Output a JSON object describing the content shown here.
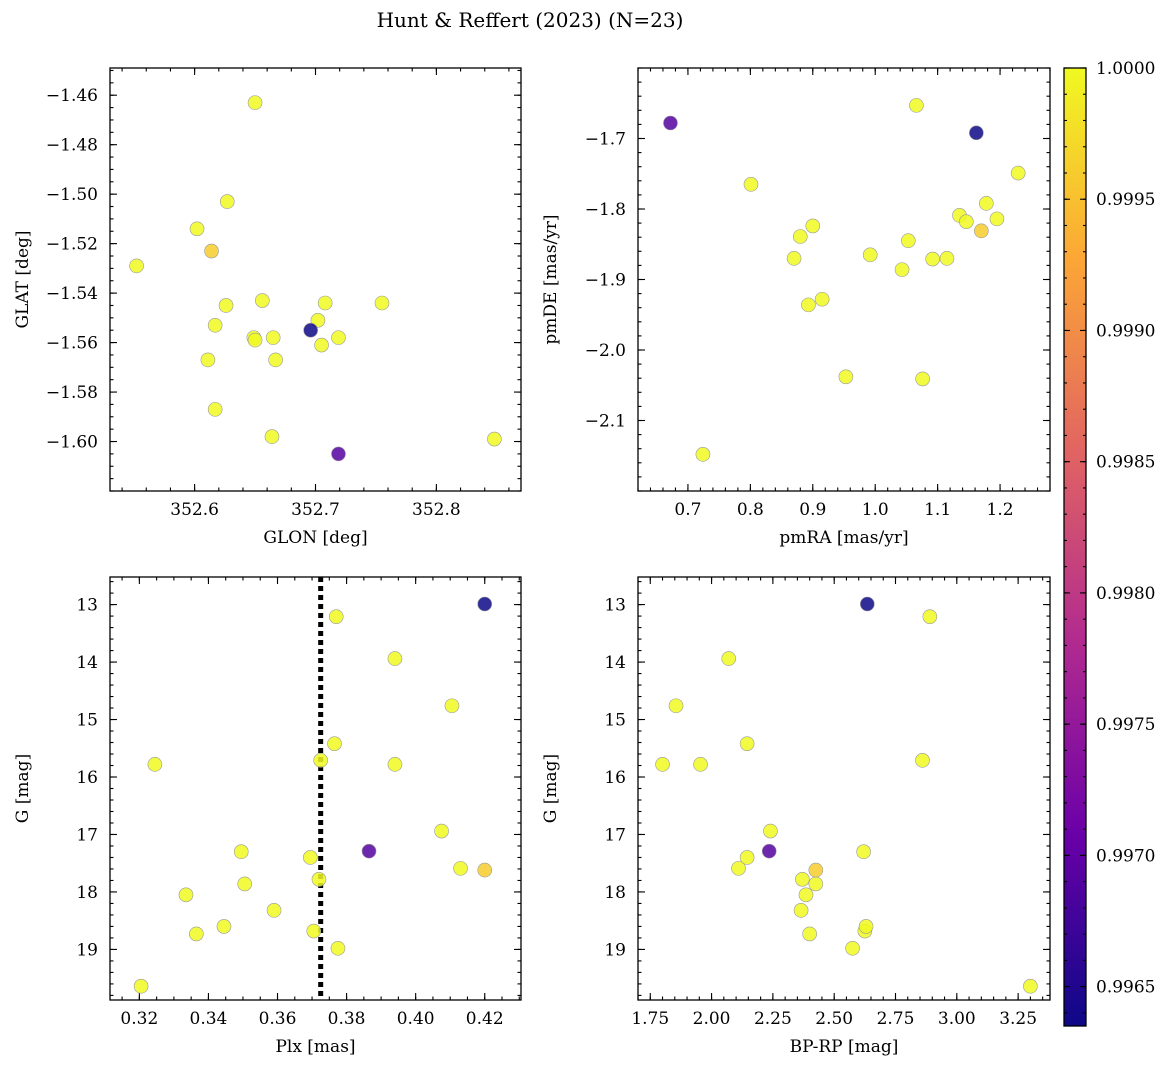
{
  "figure_title": "Hunt & Reffert (2023) (N=23)",
  "colorbar": {
    "min": 0.99635,
    "max": 1.0,
    "ticks": [
      0.9965,
      0.997,
      0.9975,
      0.998,
      0.9985,
      0.999,
      0.9995,
      1.0
    ],
    "tick_labels": [
      "0.9965",
      "0.9970",
      "0.9975",
      "0.9980",
      "0.9985",
      "0.9990",
      "0.9995",
      "1.0000"
    ],
    "colormap": "plasma",
    "cmap_colors": [
      "#0d0887",
      "#6a00a8",
      "#b12a90",
      "#e16462",
      "#fca636",
      "#f0f921"
    ]
  },
  "chart_data": [
    {
      "type": "scatter",
      "xlabel": "GLON [deg]",
      "ylabel": "GLAT [deg]",
      "xlim": [
        352.53,
        352.87
      ],
      "ylim": [
        -1.62,
        -1.449
      ],
      "y_inverted": false,
      "xticks": [
        352.6,
        352.7,
        352.8
      ],
      "xtick_labels": [
        "352.6",
        "352.7",
        "352.8"
      ],
      "yticks": [
        -1.6,
        -1.58,
        -1.56,
        -1.54,
        -1.52,
        -1.5,
        -1.48,
        -1.46
      ],
      "ytick_labels": [
        "−1.60",
        "−1.58",
        "−1.56",
        "−1.54",
        "−1.52",
        "−1.50",
        "−1.48",
        "−1.46"
      ],
      "minor_x": 0.02,
      "minor_y": 0.005,
      "points": [
        {
          "x": 352.552,
          "y": -1.529,
          "c": 1.0
        },
        {
          "x": 352.65,
          "y": -1.463,
          "c": 1.0
        },
        {
          "x": 352.602,
          "y": -1.514,
          "c": 1.0
        },
        {
          "x": 352.614,
          "y": -1.523,
          "c": 0.9996
        },
        {
          "x": 352.627,
          "y": -1.503,
          "c": 1.0
        },
        {
          "x": 352.617,
          "y": -1.553,
          "c": 1.0
        },
        {
          "x": 352.626,
          "y": -1.545,
          "c": 1.0
        },
        {
          "x": 352.611,
          "y": -1.567,
          "c": 1.0
        },
        {
          "x": 352.617,
          "y": -1.587,
          "c": 1.0
        },
        {
          "x": 352.649,
          "y": -1.558,
          "c": 1.0
        },
        {
          "x": 352.65,
          "y": -1.559,
          "c": 1.0
        },
        {
          "x": 352.656,
          "y": -1.543,
          "c": 1.0
        },
        {
          "x": 352.665,
          "y": -1.558,
          "c": 1.0
        },
        {
          "x": 352.667,
          "y": -1.567,
          "c": 1.0
        },
        {
          "x": 352.664,
          "y": -1.598,
          "c": 1.0
        },
        {
          "x": 352.696,
          "y": -1.555,
          "c": 0.99635
        },
        {
          "x": 352.702,
          "y": -1.551,
          "c": 1.0
        },
        {
          "x": 352.708,
          "y": -1.544,
          "c": 1.0
        },
        {
          "x": 352.705,
          "y": -1.561,
          "c": 1.0
        },
        {
          "x": 352.719,
          "y": -1.558,
          "c": 1.0
        },
        {
          "x": 352.719,
          "y": -1.605,
          "c": 0.9969
        },
        {
          "x": 352.755,
          "y": -1.544,
          "c": 1.0
        },
        {
          "x": 352.848,
          "y": -1.599,
          "c": 1.0
        }
      ]
    },
    {
      "type": "scatter",
      "xlabel": "pmRA [mas/yr]",
      "ylabel": "pmDE [mas/yr]",
      "xlim": [
        0.62,
        1.28
      ],
      "ylim": [
        -2.2,
        -1.6
      ],
      "y_inverted": false,
      "xticks": [
        0.7,
        0.8,
        0.9,
        1.0,
        1.1,
        1.2
      ],
      "xtick_labels": [
        "0.7",
        "0.8",
        "0.9",
        "1.0",
        "1.1",
        "1.2"
      ],
      "yticks": [
        -2.1,
        -2.0,
        -1.9,
        -1.8,
        -1.7
      ],
      "ytick_labels": [
        "−2.1",
        "−2.0",
        "−1.9",
        "−1.8",
        "−1.7"
      ],
      "minor_x": 0.02,
      "minor_y": 0.02,
      "points": [
        {
          "x": 0.672,
          "y": -1.678,
          "c": 0.9969
        },
        {
          "x": 0.724,
          "y": -2.148,
          "c": 1.0
        },
        {
          "x": 0.801,
          "y": -1.765,
          "c": 1.0
        },
        {
          "x": 0.87,
          "y": -1.87,
          "c": 1.0
        },
        {
          "x": 0.88,
          "y": -1.839,
          "c": 1.0
        },
        {
          "x": 0.9,
          "y": -1.824,
          "c": 1.0
        },
        {
          "x": 0.893,
          "y": -1.936,
          "c": 1.0
        },
        {
          "x": 0.915,
          "y": -1.928,
          "c": 1.0
        },
        {
          "x": 0.953,
          "y": -2.038,
          "c": 1.0
        },
        {
          "x": 0.992,
          "y": -1.865,
          "c": 1.0
        },
        {
          "x": 1.043,
          "y": -1.886,
          "c": 1.0
        },
        {
          "x": 1.053,
          "y": -1.845,
          "c": 1.0
        },
        {
          "x": 1.066,
          "y": -1.653,
          "c": 1.0
        },
        {
          "x": 1.076,
          "y": -2.041,
          "c": 1.0
        },
        {
          "x": 1.092,
          "y": -1.871,
          "c": 1.0
        },
        {
          "x": 1.115,
          "y": -1.87,
          "c": 1.0
        },
        {
          "x": 1.135,
          "y": -1.809,
          "c": 1.0
        },
        {
          "x": 1.146,
          "y": -1.818,
          "c": 1.0
        },
        {
          "x": 1.162,
          "y": -1.692,
          "c": 0.99635
        },
        {
          "x": 1.17,
          "y": -1.831,
          "c": 0.9996
        },
        {
          "x": 1.178,
          "y": -1.792,
          "c": 1.0
        },
        {
          "x": 1.195,
          "y": -1.814,
          "c": 1.0
        },
        {
          "x": 1.229,
          "y": -1.749,
          "c": 1.0
        }
      ]
    },
    {
      "type": "scatter",
      "xlabel": "Plx [mas]",
      "ylabel": "G [mag]",
      "xlim": [
        0.3115,
        0.4305
      ],
      "ylim": [
        19.88,
        12.52
      ],
      "y_inverted": true,
      "xticks": [
        0.32,
        0.34,
        0.36,
        0.38,
        0.4,
        0.42
      ],
      "xtick_labels": [
        "0.32",
        "0.34",
        "0.36",
        "0.38",
        "0.40",
        "0.42"
      ],
      "yticks": [
        13,
        14,
        15,
        16,
        17,
        18,
        19
      ],
      "ytick_labels": [
        "13",
        "14",
        "15",
        "16",
        "17",
        "18",
        "19"
      ],
      "minor_x": 0.005,
      "minor_y": 0.2,
      "vline": {
        "x": 0.3725,
        "style": "dotted",
        "color": "#000000"
      },
      "points": [
        {
          "x": 0.3205,
          "y": 19.64,
          "c": 1.0
        },
        {
          "x": 0.3245,
          "y": 15.78,
          "c": 1.0
        },
        {
          "x": 0.3335,
          "y": 18.05,
          "c": 1.0
        },
        {
          "x": 0.3365,
          "y": 18.73,
          "c": 1.0
        },
        {
          "x": 0.3445,
          "y": 18.6,
          "c": 1.0
        },
        {
          "x": 0.3495,
          "y": 17.3,
          "c": 1.0
        },
        {
          "x": 0.3505,
          "y": 17.86,
          "c": 1.0
        },
        {
          "x": 0.359,
          "y": 18.32,
          "c": 1.0
        },
        {
          "x": 0.3695,
          "y": 17.4,
          "c": 1.0
        },
        {
          "x": 0.3705,
          "y": 18.68,
          "c": 1.0
        },
        {
          "x": 0.372,
          "y": 17.78,
          "c": 1.0
        },
        {
          "x": 0.3725,
          "y": 15.71,
          "c": 1.0
        },
        {
          "x": 0.3765,
          "y": 15.42,
          "c": 1.0
        },
        {
          "x": 0.377,
          "y": 13.21,
          "c": 1.0
        },
        {
          "x": 0.3775,
          "y": 18.98,
          "c": 1.0
        },
        {
          "x": 0.3865,
          "y": 17.29,
          "c": 0.9969
        },
        {
          "x": 0.394,
          "y": 13.94,
          "c": 1.0
        },
        {
          "x": 0.394,
          "y": 15.78,
          "c": 1.0
        },
        {
          "x": 0.4075,
          "y": 16.94,
          "c": 1.0
        },
        {
          "x": 0.4105,
          "y": 14.76,
          "c": 1.0
        },
        {
          "x": 0.413,
          "y": 17.59,
          "c": 1.0
        },
        {
          "x": 0.42,
          "y": 12.99,
          "c": 0.99635
        },
        {
          "x": 0.42,
          "y": 17.62,
          "c": 0.9996
        }
      ]
    },
    {
      "type": "scatter",
      "xlabel": "BP-RP [mag]",
      "ylabel": "G [mag]",
      "xlim": [
        1.7,
        3.38
      ],
      "ylim": [
        19.88,
        12.52
      ],
      "y_inverted": true,
      "xticks": [
        1.75,
        2.0,
        2.25,
        2.5,
        2.75,
        3.0,
        3.25
      ],
      "xtick_labels": [
        "1.75",
        "2.00",
        "2.25",
        "2.50",
        "2.75",
        "3.00",
        "3.25"
      ],
      "yticks": [
        13,
        14,
        15,
        16,
        17,
        18,
        19
      ],
      "ytick_labels": [
        "13",
        "14",
        "15",
        "16",
        "17",
        "18",
        "19"
      ],
      "minor_x": 0.05,
      "minor_y": 0.2,
      "points": [
        {
          "x": 1.8,
          "y": 15.78,
          "c": 1.0
        },
        {
          "x": 1.855,
          "y": 14.76,
          "c": 1.0
        },
        {
          "x": 1.955,
          "y": 15.78,
          "c": 1.0
        },
        {
          "x": 2.07,
          "y": 13.94,
          "c": 1.0
        },
        {
          "x": 2.11,
          "y": 17.59,
          "c": 1.0
        },
        {
          "x": 2.145,
          "y": 17.4,
          "c": 1.0
        },
        {
          "x": 2.145,
          "y": 15.42,
          "c": 1.0
        },
        {
          "x": 2.24,
          "y": 16.94,
          "c": 1.0
        },
        {
          "x": 2.235,
          "y": 17.29,
          "c": 0.9969
        },
        {
          "x": 2.365,
          "y": 18.32,
          "c": 1.0
        },
        {
          "x": 2.37,
          "y": 17.78,
          "c": 1.0
        },
        {
          "x": 2.385,
          "y": 18.05,
          "c": 1.0
        },
        {
          "x": 2.4,
          "y": 18.73,
          "c": 1.0
        },
        {
          "x": 2.425,
          "y": 17.62,
          "c": 0.9996
        },
        {
          "x": 2.425,
          "y": 17.86,
          "c": 1.0
        },
        {
          "x": 2.575,
          "y": 18.98,
          "c": 1.0
        },
        {
          "x": 2.62,
          "y": 17.3,
          "c": 1.0
        },
        {
          "x": 2.625,
          "y": 18.68,
          "c": 1.0
        },
        {
          "x": 2.63,
          "y": 18.6,
          "c": 1.0
        },
        {
          "x": 2.635,
          "y": 12.99,
          "c": 0.99635
        },
        {
          "x": 2.86,
          "y": 15.71,
          "c": 1.0
        },
        {
          "x": 2.89,
          "y": 13.21,
          "c": 1.0
        },
        {
          "x": 3.3,
          "y": 19.64,
          "c": 1.0
        }
      ]
    }
  ]
}
